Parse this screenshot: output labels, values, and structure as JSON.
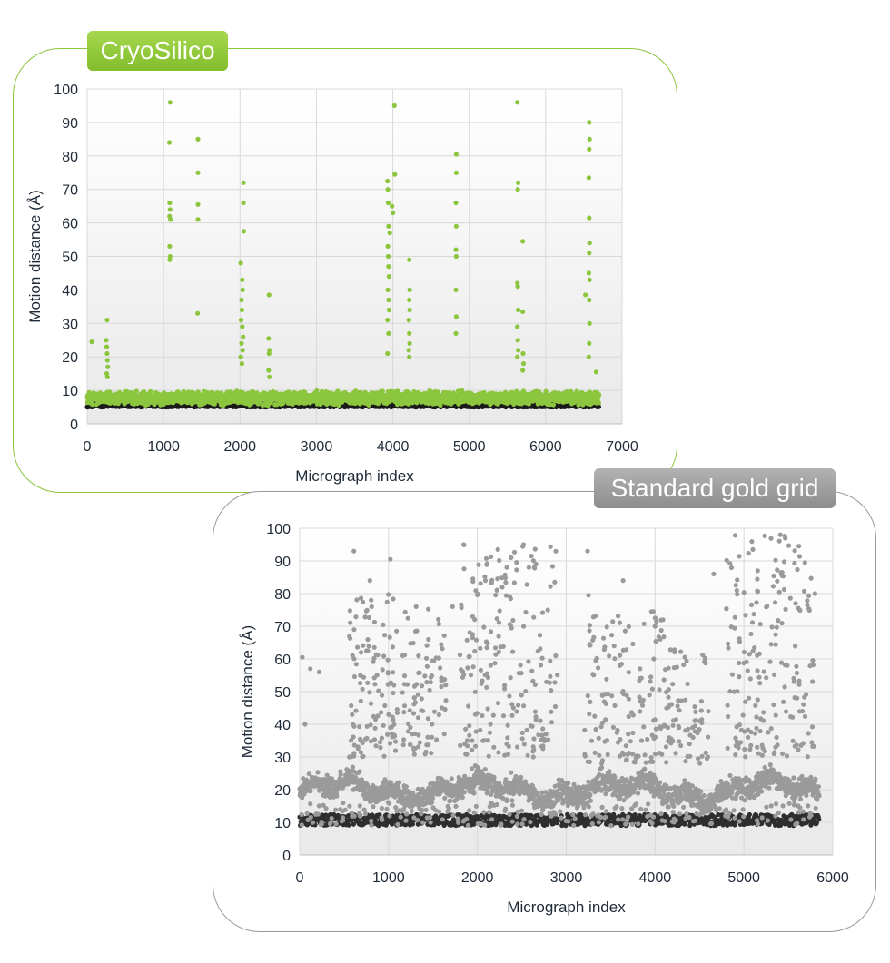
{
  "chart_data": [
    {
      "type": "scatter",
      "title": "CryoSilico",
      "xlabel": "Micrograph index",
      "ylabel": "Motion distance (Å)",
      "xlim": [
        0,
        7000
      ],
      "ylim": [
        0,
        100
      ],
      "xticks": [
        "0",
        "1000",
        "2000",
        "3000",
        "4000",
        "5000",
        "6000",
        "7000"
      ],
      "yticks": [
        "0",
        "10",
        "20",
        "30",
        "40",
        "50",
        "60",
        "70",
        "80",
        "90",
        "100"
      ],
      "n_points": 6700,
      "baseline_range": [
        5,
        11
      ],
      "color": "#8cc63f",
      "edge_color": "#1a1a1a",
      "grid": true,
      "outliers": [
        {
          "x": 60,
          "y": 24.5
        },
        {
          "x": 260,
          "y": 31
        },
        {
          "x": 250,
          "y": 25
        },
        {
          "x": 255,
          "y": 23
        },
        {
          "x": 260,
          "y": 21
        },
        {
          "x": 265,
          "y": 19
        },
        {
          "x": 270,
          "y": 17
        },
        {
          "x": 255,
          "y": 15
        },
        {
          "x": 265,
          "y": 14
        },
        {
          "x": 1085,
          "y": 96
        },
        {
          "x": 1075,
          "y": 84
        },
        {
          "x": 1080,
          "y": 66
        },
        {
          "x": 1085,
          "y": 64
        },
        {
          "x": 1078,
          "y": 62
        },
        {
          "x": 1090,
          "y": 61
        },
        {
          "x": 1080,
          "y": 53
        },
        {
          "x": 1085,
          "y": 50
        },
        {
          "x": 1080,
          "y": 49
        },
        {
          "x": 1450,
          "y": 85
        },
        {
          "x": 1450,
          "y": 75
        },
        {
          "x": 1450,
          "y": 65.5
        },
        {
          "x": 1450,
          "y": 61
        },
        {
          "x": 1445,
          "y": 33
        },
        {
          "x": 2045,
          "y": 72
        },
        {
          "x": 2045,
          "y": 66
        },
        {
          "x": 2050,
          "y": 57.5
        },
        {
          "x": 2010,
          "y": 48
        },
        {
          "x": 2030,
          "y": 43
        },
        {
          "x": 2035,
          "y": 40
        },
        {
          "x": 2020,
          "y": 37
        },
        {
          "x": 2025,
          "y": 34
        },
        {
          "x": 2015,
          "y": 31
        },
        {
          "x": 2030,
          "y": 29
        },
        {
          "x": 2040,
          "y": 26
        },
        {
          "x": 2020,
          "y": 24
        },
        {
          "x": 2035,
          "y": 22
        },
        {
          "x": 2010,
          "y": 20
        },
        {
          "x": 2025,
          "y": 18
        },
        {
          "x": 2380,
          "y": 38.5
        },
        {
          "x": 2375,
          "y": 25.5
        },
        {
          "x": 2385,
          "y": 22
        },
        {
          "x": 2380,
          "y": 21
        },
        {
          "x": 2375,
          "y": 16
        },
        {
          "x": 2385,
          "y": 14
        },
        {
          "x": 4020,
          "y": 95
        },
        {
          "x": 4025,
          "y": 74.5
        },
        {
          "x": 3930,
          "y": 72.5
        },
        {
          "x": 3935,
          "y": 70
        },
        {
          "x": 3940,
          "y": 66
        },
        {
          "x": 3990,
          "y": 65
        },
        {
          "x": 4000,
          "y": 63
        },
        {
          "x": 3945,
          "y": 59
        },
        {
          "x": 3960,
          "y": 57
        },
        {
          "x": 3935,
          "y": 53
        },
        {
          "x": 3940,
          "y": 50
        },
        {
          "x": 3945,
          "y": 47
        },
        {
          "x": 3950,
          "y": 44
        },
        {
          "x": 3935,
          "y": 40
        },
        {
          "x": 3945,
          "y": 37
        },
        {
          "x": 3950,
          "y": 34
        },
        {
          "x": 3930,
          "y": 31
        },
        {
          "x": 3945,
          "y": 27
        },
        {
          "x": 3930,
          "y": 21
        },
        {
          "x": 4215,
          "y": 49
        },
        {
          "x": 4220,
          "y": 40
        },
        {
          "x": 4215,
          "y": 37
        },
        {
          "x": 4220,
          "y": 34
        },
        {
          "x": 4210,
          "y": 31
        },
        {
          "x": 4215,
          "y": 27
        },
        {
          "x": 4220,
          "y": 24
        },
        {
          "x": 4210,
          "y": 22
        },
        {
          "x": 4215,
          "y": 20
        },
        {
          "x": 4830,
          "y": 80.5
        },
        {
          "x": 4830,
          "y": 75
        },
        {
          "x": 4825,
          "y": 66
        },
        {
          "x": 4830,
          "y": 59
        },
        {
          "x": 4825,
          "y": 52
        },
        {
          "x": 4830,
          "y": 50
        },
        {
          "x": 4825,
          "y": 40
        },
        {
          "x": 4830,
          "y": 32
        },
        {
          "x": 4825,
          "y": 27
        },
        {
          "x": 5630,
          "y": 96
        },
        {
          "x": 5640,
          "y": 72
        },
        {
          "x": 5635,
          "y": 70
        },
        {
          "x": 5630,
          "y": 42
        },
        {
          "x": 5635,
          "y": 41
        },
        {
          "x": 5640,
          "y": 34
        },
        {
          "x": 5630,
          "y": 29
        },
        {
          "x": 5635,
          "y": 25
        },
        {
          "x": 5640,
          "y": 22
        },
        {
          "x": 5630,
          "y": 20
        },
        {
          "x": 5700,
          "y": 54.5
        },
        {
          "x": 5700,
          "y": 33.5
        },
        {
          "x": 5705,
          "y": 21
        },
        {
          "x": 5710,
          "y": 18
        },
        {
          "x": 5700,
          "y": 16
        },
        {
          "x": 6570,
          "y": 90
        },
        {
          "x": 6575,
          "y": 85
        },
        {
          "x": 6570,
          "y": 82
        },
        {
          "x": 6565,
          "y": 73.5
        },
        {
          "x": 6570,
          "y": 61.5
        },
        {
          "x": 6575,
          "y": 54
        },
        {
          "x": 6570,
          "y": 51
        },
        {
          "x": 6565,
          "y": 45
        },
        {
          "x": 6575,
          "y": 43
        },
        {
          "x": 6520,
          "y": 38.5
        },
        {
          "x": 6570,
          "y": 37
        },
        {
          "x": 6575,
          "y": 30
        },
        {
          "x": 6570,
          "y": 24
        },
        {
          "x": 6565,
          "y": 20
        },
        {
          "x": 6660,
          "y": 15.5
        }
      ]
    },
    {
      "type": "scatter",
      "title": "Standard gold grid",
      "xlabel": "Micrograph index",
      "ylabel": "Motion distance (Å)",
      "xlim": [
        0,
        6000
      ],
      "ylim": [
        0,
        100
      ],
      "xticks": [
        "0",
        "1000",
        "2000",
        "3000",
        "4000",
        "5000",
        "6000"
      ],
      "yticks": [
        "0",
        "10",
        "20",
        "30",
        "40",
        "50",
        "60",
        "70",
        "80",
        "90",
        "100"
      ],
      "n_points": 5850,
      "baseline_range": [
        9,
        28
      ],
      "color": "#9a9a9a",
      "edge_color": "#2e2e2e",
      "grid": true,
      "clusters": [
        {
          "x_range": [
            550,
            1100
          ],
          "y_range": [
            30,
            80
          ],
          "count": 120
        },
        {
          "x_range": [
            1150,
            1650
          ],
          "y_range": [
            30,
            77
          ],
          "count": 90
        },
        {
          "x_range": [
            1800,
            2900
          ],
          "y_range": [
            30,
            95
          ],
          "count": 200
        },
        {
          "x_range": [
            3200,
            4100
          ],
          "y_range": [
            28,
            75
          ],
          "count": 140
        },
        {
          "x_range": [
            4100,
            4600
          ],
          "y_range": [
            28,
            63
          ],
          "count": 80
        },
        {
          "x_range": [
            4800,
            5800
          ],
          "y_range": [
            30,
            98
          ],
          "count": 190
        }
      ],
      "outliers": [
        {
          "x": 5410,
          "y": 98
        },
        {
          "x": 2520,
          "y": 95
        },
        {
          "x": 2230,
          "y": 93.5
        },
        {
          "x": 3240,
          "y": 93
        },
        {
          "x": 5100,
          "y": 93.5
        },
        {
          "x": 610,
          "y": 93
        },
        {
          "x": 1020,
          "y": 90.5
        },
        {
          "x": 2380,
          "y": 91
        },
        {
          "x": 2330,
          "y": 88
        },
        {
          "x": 2580,
          "y": 88
        },
        {
          "x": 2640,
          "y": 88
        },
        {
          "x": 5430,
          "y": 86.5
        },
        {
          "x": 4660,
          "y": 86
        },
        {
          "x": 2090,
          "y": 84
        },
        {
          "x": 3640,
          "y": 84
        },
        {
          "x": 790,
          "y": 84
        },
        {
          "x": 2870,
          "y": 83.5
        },
        {
          "x": 3250,
          "y": 79.5
        },
        {
          "x": 5800,
          "y": 80
        },
        {
          "x": 1720,
          "y": 76
        },
        {
          "x": 1310,
          "y": 76
        },
        {
          "x": 30,
          "y": 60.5
        },
        {
          "x": 60,
          "y": 40
        },
        {
          "x": 120,
          "y": 57
        },
        {
          "x": 220,
          "y": 56
        },
        {
          "x": 4090,
          "y": 72
        },
        {
          "x": 3960,
          "y": 74.5
        },
        {
          "x": 4000,
          "y": 70
        }
      ]
    }
  ]
}
